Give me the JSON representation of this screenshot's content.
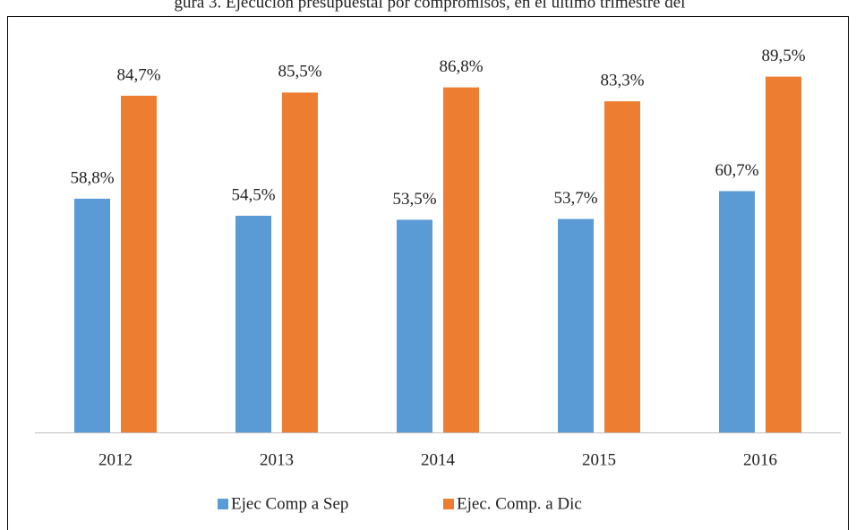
{
  "chart_data": {
    "type": "bar",
    "title": "gura 3. Ejecución presupuestal por compromisos, en el último trimestre del",
    "categories": [
      "2012",
      "2013",
      "2014",
      "2015",
      "2016"
    ],
    "series": [
      {
        "name": "Ejec Comp a Sep",
        "color": "#5b9bd5",
        "values": [
          58.8,
          54.5,
          53.5,
          53.7,
          60.7
        ],
        "value_labels": [
          "58,8%",
          "54,5%",
          "53,5%",
          "53,7%",
          "60,7%"
        ]
      },
      {
        "name": "Ejec. Comp. a Dic",
        "color": "#ed7d31",
        "values": [
          84.7,
          85.5,
          86.8,
          83.3,
          89.5
        ],
        "value_labels": [
          "84,7%",
          "85,5%",
          "86,8%",
          "83,3%",
          "89,5%"
        ]
      }
    ],
    "ylim": [
      0,
      100
    ],
    "legend": "bottom"
  }
}
